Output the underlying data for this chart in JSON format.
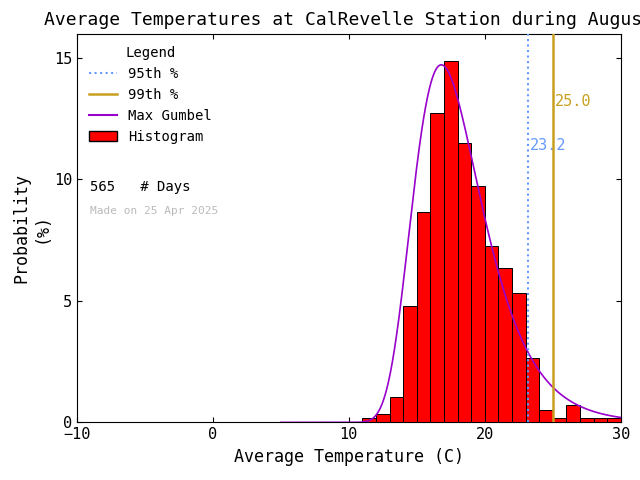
{
  "title": "Average Temperatures at CalRevelle Station during August",
  "xlabel": "Average Temperature (C)",
  "ylabel": "Probability\n(%)",
  "xlim": [
    -10,
    30
  ],
  "ylim": [
    0,
    16
  ],
  "yticks": [
    0,
    5,
    10,
    15
  ],
  "xticks": [
    -10,
    0,
    10,
    20,
    30
  ],
  "background_color": "#ffffff",
  "n_days": 565,
  "made_on": "Made on 25 Apr 2025",
  "pct_95": 23.2,
  "pct_99": 25.0,
  "pct_95_color": "#6699ff",
  "pct_99_color": "#c8a020",
  "pct_95_label": "23.2",
  "pct_99_label": "25.0",
  "hist_color": "#ff0000",
  "hist_edge_color": "#000000",
  "gumbel_color": "#9900cc",
  "bin_edges": [
    11,
    12,
    13,
    14,
    15,
    16,
    17,
    18,
    19,
    20,
    21,
    22,
    23,
    24,
    25,
    26,
    27,
    28,
    29,
    30
  ],
  "bin_values": [
    0.18,
    0.35,
    1.06,
    4.78,
    8.67,
    12.74,
    14.87,
    11.5,
    9.73,
    7.26,
    6.37,
    5.31,
    2.65,
    0.53,
    0.18,
    0.71,
    0.18,
    0.18,
    0.18,
    0.18
  ],
  "gumbel_mu": 16.8,
  "gumbel_beta": 2.5,
  "gumbel_scale": 100.0,
  "title_fontsize": 13,
  "axis_label_fontsize": 12,
  "tick_fontsize": 11,
  "legend_fontsize": 10
}
